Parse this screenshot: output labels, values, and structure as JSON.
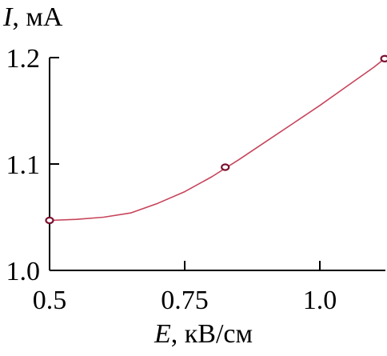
{
  "chart_data": {
    "type": "line",
    "x": [
      0.5,
      0.825,
      1.12
    ],
    "y": [
      1.047,
      1.097,
      1.199
    ],
    "curve": [
      [
        0.5,
        1.047
      ],
      [
        0.55,
        1.048
      ],
      [
        0.6,
        1.05
      ],
      [
        0.65,
        1.054
      ],
      [
        0.7,
        1.063
      ],
      [
        0.75,
        1.074
      ],
      [
        0.8,
        1.088
      ],
      [
        0.85,
        1.104
      ],
      [
        0.9,
        1.121
      ],
      [
        0.95,
        1.138
      ],
      [
        1.0,
        1.155
      ],
      [
        1.05,
        1.173
      ],
      [
        1.1,
        1.191
      ],
      [
        1.12,
        1.199
      ]
    ],
    "xlabel_var": "E",
    "xlabel_unit": ", кВ/см",
    "ylabel_var": "I",
    "ylabel_unit": ", мА",
    "xlim": [
      0.5,
      1.13
    ],
    "ylim": [
      1.0,
      1.2
    ],
    "xticks": [
      0.5,
      0.75,
      1.0
    ],
    "xtick_labels": [
      "0.5",
      "0.75",
      "1.0"
    ],
    "yticks": [
      1.0,
      1.1,
      1.2
    ],
    "ytick_labels": [
      "1.0",
      "1.1",
      "1.2"
    ],
    "grid": false,
    "colors": {
      "line": "#c8435a",
      "marker": "#7a1230",
      "axis": "#000000"
    }
  }
}
